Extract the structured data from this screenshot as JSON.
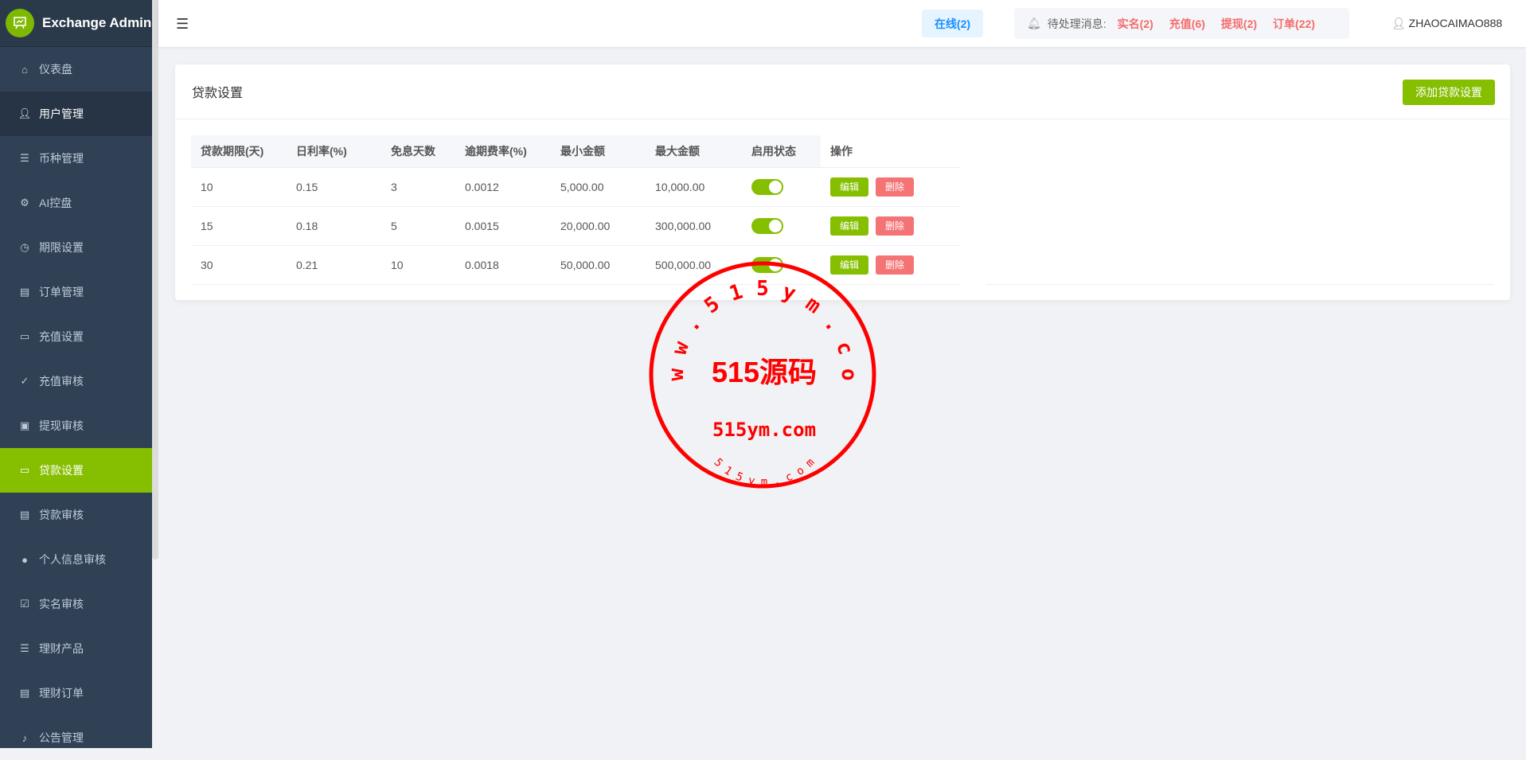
{
  "app": {
    "title": "Exchange Admin"
  },
  "sidebar": {
    "items": [
      {
        "label": "仪表盘",
        "icon": "presentation-icon"
      },
      {
        "label": "用户管理",
        "icon": "user-icon"
      },
      {
        "label": "币种管理",
        "icon": "database-icon"
      },
      {
        "label": "AI控盘",
        "icon": "gear-icon"
      },
      {
        "label": "期限设置",
        "icon": "timer-icon"
      },
      {
        "label": "订单管理",
        "icon": "document-icon"
      },
      {
        "label": "充值设置",
        "icon": "folder-icon"
      },
      {
        "label": "充值审核",
        "icon": "check-icon"
      },
      {
        "label": "提现审核",
        "icon": "id-card-icon"
      },
      {
        "label": "贷款设置",
        "icon": "folder-icon"
      },
      {
        "label": "贷款审核",
        "icon": "document-icon"
      },
      {
        "label": "个人信息审核",
        "icon": "person-icon"
      },
      {
        "label": "实名审核",
        "icon": "document-check-icon"
      },
      {
        "label": "理财产品",
        "icon": "database-icon"
      },
      {
        "label": "理财订单",
        "icon": "document-icon"
      },
      {
        "label": "公告管理",
        "icon": "bell-icon"
      }
    ],
    "active": "贷款设置"
  },
  "header": {
    "online": "在线(2)",
    "pending_label": "待处理消息:",
    "pending": [
      "实名(2)",
      "充值(6)",
      "提现(2)",
      "订单(22)"
    ],
    "user": "ZHAOCAIMAO888"
  },
  "card": {
    "title": "贷款设置",
    "add_button": "添加贷款设置"
  },
  "table": {
    "columns": [
      "贷款期限(天)",
      "日利率(%)",
      "免息天数",
      "逾期费率(%)",
      "最小金额",
      "最大金额",
      "启用状态",
      "操作"
    ],
    "rows": [
      {
        "term": "10",
        "rate": "0.15",
        "free_days": "3",
        "overdue": "0.0012",
        "min": "5,000.00",
        "max": "10,000.00",
        "enabled": true
      },
      {
        "term": "15",
        "rate": "0.18",
        "free_days": "5",
        "overdue": "0.0015",
        "min": "20,000.00",
        "max": "300,000.00",
        "enabled": true
      },
      {
        "term": "30",
        "rate": "0.21",
        "free_days": "10",
        "overdue": "0.0018",
        "min": "50,000.00",
        "max": "500,000.00",
        "enabled": true
      }
    ],
    "edit_label": "编辑",
    "delete_label": "删除"
  },
  "watermark": {
    "ring": "w w w . 5 1 5 y m . c o m",
    "main": "515源码",
    "domain": "515ym.com",
    "small": "5 1 5 y m . c o m"
  },
  "colors": {
    "accent": "#85bf00",
    "danger": "#f47375",
    "sidebar": "#304156",
    "link": "#1890ff"
  }
}
